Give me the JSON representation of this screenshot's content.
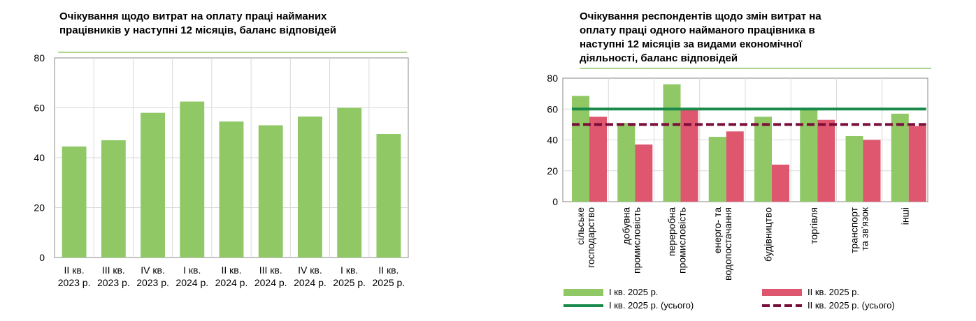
{
  "colors": {
    "green_bar": "#8fc865",
    "red_bar": "#df566f",
    "dark_green": "#1a8a4a",
    "dark_red": "#7a0d3a",
    "title_rule": "#8fc865",
    "grid": "#d9d9d9",
    "axis": "#888888"
  },
  "chart_data": [
    {
      "type": "bar",
      "title": "Очікування щодо витрат на оплату праці найманих працівників у наступні 12 місяців, баланс відповідей",
      "title_lines": [
        "Очікування щодо витрат на оплату праці найманих",
        "працівників у наступні 12 місяців, баланс відповідей"
      ],
      "categories": [
        [
          "II кв.",
          "2023 р."
        ],
        [
          "III кв.",
          "2023 р."
        ],
        [
          "IV кв.",
          "2023 р."
        ],
        [
          "I кв.",
          "2024 р."
        ],
        [
          "II кв.",
          "2024 р."
        ],
        [
          "III кв.",
          "2024 р."
        ],
        [
          "IV кв.",
          "2024 р."
        ],
        [
          "I кв.",
          "2025 р."
        ],
        [
          "II кв.",
          "2025 р."
        ]
      ],
      "values": [
        44.5,
        47,
        58,
        62.5,
        54.5,
        53,
        56.5,
        60,
        49.5
      ],
      "ylim": [
        0,
        80
      ],
      "yticks": [
        0,
        20,
        40,
        60,
        80
      ],
      "xlabel": "",
      "ylabel": "",
      "grid": true
    },
    {
      "type": "bar",
      "title": "Очікування респондентів щодо змін витрат на оплату праці одного найманого працівника в наступні 12 місяців за видами економічної діяльності, баланс відповідей",
      "title_lines": [
        "Очікування респондентів щодо змін витрат на",
        "оплату праці одного найманого працівника в",
        "наступні 12 місяців за видами економічної",
        "діяльності, баланс відповідей"
      ],
      "categories": [
        [
          "сільське",
          "господарство"
        ],
        [
          "добувна",
          "промисловість"
        ],
        [
          "переробна",
          "промисловість"
        ],
        [
          "енерго- та",
          "водопостачання"
        ],
        [
          "будівництво"
        ],
        [
          "торгівля"
        ],
        [
          "транспорт",
          "та зв'язок"
        ],
        [
          "інші"
        ]
      ],
      "series": [
        {
          "name": "I кв. 2025 р.",
          "values": [
            68.5,
            51,
            76,
            42,
            55,
            60,
            42.5,
            57
          ]
        },
        {
          "name": "II кв. 2025 р.",
          "values": [
            55,
            37,
            59.5,
            45.5,
            24,
            53,
            40,
            49
          ]
        }
      ],
      "reference_lines": [
        {
          "name": "I кв. 2025 р. (усього)",
          "value": 60,
          "style": "solid"
        },
        {
          "name": "II кв. 2025 р. (усього)",
          "value": 50,
          "style": "dashed"
        }
      ],
      "ylim": [
        0,
        80
      ],
      "yticks": [
        0,
        20,
        40,
        60,
        80
      ],
      "xlabel": "",
      "ylabel": "",
      "grid": true,
      "legend_position": "bottom"
    }
  ]
}
